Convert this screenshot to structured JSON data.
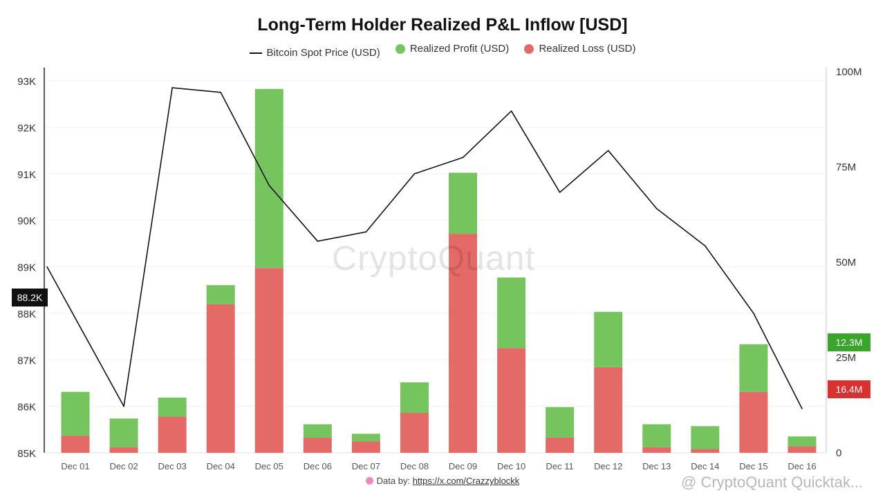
{
  "chart_data": {
    "type": "bar",
    "title": "Long-Term Holder Realized P&L Inflow [USD]",
    "categories": [
      "Dec 01",
      "Dec 02",
      "Dec 03",
      "Dec 04",
      "Dec 05",
      "Dec 06",
      "Dec 07",
      "Dec 08",
      "Dec 09",
      "Dec 10",
      "Dec 11",
      "Dec 12",
      "Dec 13",
      "Dec 14",
      "Dec 15",
      "Dec 16"
    ],
    "series": [
      {
        "name": "Realized Loss (USD)",
        "kind": "stacked-bar",
        "axis": "right",
        "color": "#e46a68",
        "values": [
          4.5,
          1.5,
          9.5,
          39,
          48.5,
          4,
          3,
          10.5,
          57.5,
          27.5,
          4,
          22.5,
          1.5,
          1,
          16,
          1.7
        ]
      },
      {
        "name": "Realized Profit (USD)",
        "kind": "stacked-bar",
        "axis": "right",
        "color": "#76c45e",
        "values": [
          11.5,
          7.5,
          5,
          5,
          47,
          3.5,
          2,
          8,
          16,
          18.5,
          8,
          14.5,
          6,
          6,
          12.5,
          2.6
        ]
      },
      {
        "name": "Bitcoin Spot Price (USD)",
        "kind": "line",
        "axis": "left",
        "color": "#111111",
        "values": [
          89000,
          86000,
          92850,
          92750,
          90750,
          89550,
          89750,
          91000,
          91350,
          92350,
          90600,
          91500,
          90250,
          89450,
          88000,
          85950
        ]
      }
    ],
    "y_left": {
      "min": 85000,
      "max": 93000,
      "ticks": [
        85000,
        86000,
        87000,
        88000,
        89000,
        90000,
        91000,
        92000,
        93000
      ],
      "tick_labels": [
        "85K",
        "86K",
        "87K",
        "88K",
        "89K",
        "90K",
        "91K",
        "92K",
        "93K"
      ]
    },
    "y_right": {
      "min": 0,
      "max": 100,
      "unit": "M",
      "ticks": [
        0,
        25,
        50,
        75,
        100
      ],
      "tick_labels": [
        "0",
        "25M",
        "50M",
        "75M",
        "100M"
      ]
    },
    "grid": true,
    "legend_position": "top-center"
  },
  "legend": {
    "price": "Bitcoin Spot Price (USD)",
    "profit": "Realized Profit (USD)",
    "loss": "Realized Loss (USD)"
  },
  "badges": {
    "price_label": "88.2K",
    "profit_label": "12.3M",
    "profit_color": "#3aa52b",
    "loss_label": "16.4M",
    "loss_color": "#d93131"
  },
  "watermark": "CryptoQuant",
  "footer": {
    "icon": "brain-icon",
    "prefix": "Data by: ",
    "link": "https://x.com/Crazzyblockk"
  },
  "corner_watermark": "@ CryptoQuant Quicktak..."
}
